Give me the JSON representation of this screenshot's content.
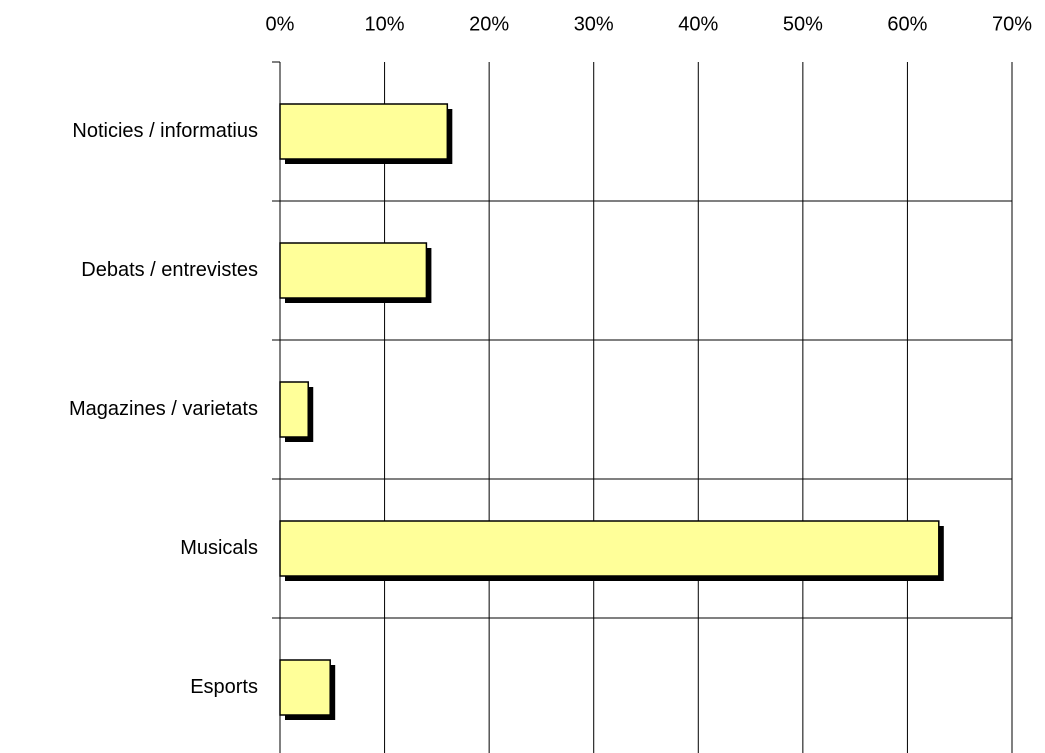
{
  "chart_data": {
    "type": "barh",
    "categories": [
      "Noticies / informatius",
      "Debats / entrevistes",
      "Magazines / varietats",
      "Musicals",
      "Esports"
    ],
    "values": [
      16,
      14,
      2.7,
      63,
      4.8
    ],
    "color": "#ffff99",
    "xlim": [
      0,
      70
    ],
    "xticks": [
      {
        "value": 0,
        "label": "0%"
      },
      {
        "value": 10,
        "label": "10%"
      },
      {
        "value": 20,
        "label": "20%"
      },
      {
        "value": 30,
        "label": "30%"
      },
      {
        "value": 40,
        "label": "40%"
      },
      {
        "value": 50,
        "label": "50%"
      },
      {
        "value": 60,
        "label": "60%"
      },
      {
        "value": 70,
        "label": "70%"
      }
    ],
    "grid": true
  }
}
